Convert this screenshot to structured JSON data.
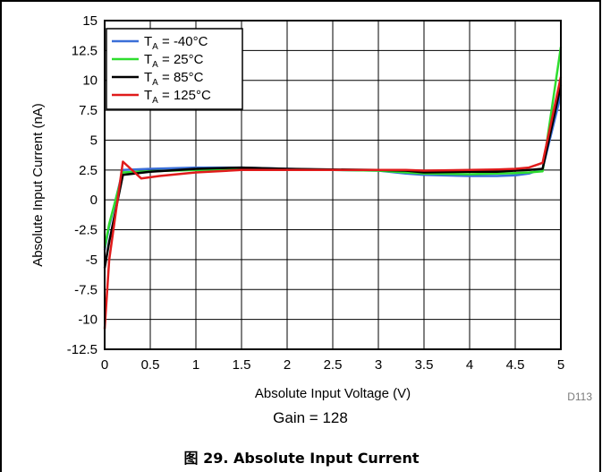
{
  "chart_data": {
    "type": "line",
    "xlabel": "Absolute Input Voltage (V)",
    "ylabel": "Absolute Input Current (nA)",
    "xlim": [
      0,
      5
    ],
    "ylim": [
      -12.5,
      15
    ],
    "x_ticks": [
      "0",
      "0.5",
      "1",
      "1.5",
      "2",
      "2.5",
      "3",
      "3.5",
      "4",
      "4.5",
      "5"
    ],
    "y_ticks": [
      "15",
      "12.5",
      "10",
      "7.5",
      "5",
      "2.5",
      "0",
      "-2.5",
      "-5",
      "-7.5",
      "-10",
      "-12.5"
    ],
    "grid": true,
    "legend_position": "top-left",
    "series": [
      {
        "name_main": "T",
        "name_sub": "A",
        "name_rest": " = -40°C",
        "color": "#3a6fd8",
        "x": [
          0,
          0.05,
          0.2,
          0.5,
          1.0,
          1.5,
          2.0,
          2.5,
          3.0,
          3.3,
          3.5,
          4.0,
          4.3,
          4.5,
          4.65,
          4.8,
          5.0
        ],
        "y": [
          -4.2,
          -2.2,
          2.5,
          2.6,
          2.7,
          2.7,
          2.6,
          2.5,
          2.45,
          2.2,
          2.1,
          2.0,
          2.0,
          2.05,
          2.2,
          2.6,
          8.8
        ]
      },
      {
        "name_main": "T",
        "name_sub": "A",
        "name_rest": " = 25°C",
        "color": "#2edd2e",
        "x": [
          0,
          0.05,
          0.2,
          0.5,
          1.0,
          1.5,
          2.0,
          2.5,
          3.0,
          3.3,
          3.5,
          4.0,
          4.3,
          4.5,
          4.65,
          4.8,
          5.0
        ],
        "y": [
          -4.0,
          -2.0,
          2.3,
          2.4,
          2.5,
          2.55,
          2.5,
          2.5,
          2.45,
          2.3,
          2.2,
          2.15,
          2.2,
          2.25,
          2.3,
          2.4,
          12.8
        ]
      },
      {
        "name_main": "T",
        "name_sub": "A",
        "name_rest": " = 85°C",
        "color": "#000000",
        "x": [
          0,
          0.05,
          0.2,
          0.5,
          1.0,
          1.5,
          2.0,
          2.5,
          3.0,
          3.3,
          3.5,
          4.0,
          4.3,
          4.5,
          4.65,
          4.8,
          5.0
        ],
        "y": [
          -5.7,
          -3.5,
          2.1,
          2.35,
          2.6,
          2.7,
          2.6,
          2.55,
          2.5,
          2.45,
          2.3,
          2.35,
          2.35,
          2.45,
          2.5,
          2.6,
          9.6
        ]
      },
      {
        "name_main": "T",
        "name_sub": "A",
        "name_rest": " = 125°C",
        "color": "#e01b1b",
        "x": [
          0,
          0.05,
          0.2,
          0.4,
          0.6,
          1.0,
          1.5,
          2.0,
          2.5,
          3.0,
          3.3,
          3.5,
          4.0,
          4.3,
          4.5,
          4.65,
          4.8,
          5.0
        ],
        "y": [
          -10.8,
          -5.0,
          3.2,
          1.8,
          2.0,
          2.3,
          2.5,
          2.5,
          2.5,
          2.5,
          2.5,
          2.45,
          2.5,
          2.55,
          2.6,
          2.7,
          3.1,
          10.3
        ]
      }
    ]
  },
  "figure": {
    "code": "D113",
    "note": "Gain = 128",
    "caption": "图 29. Absolute Input Current"
  }
}
